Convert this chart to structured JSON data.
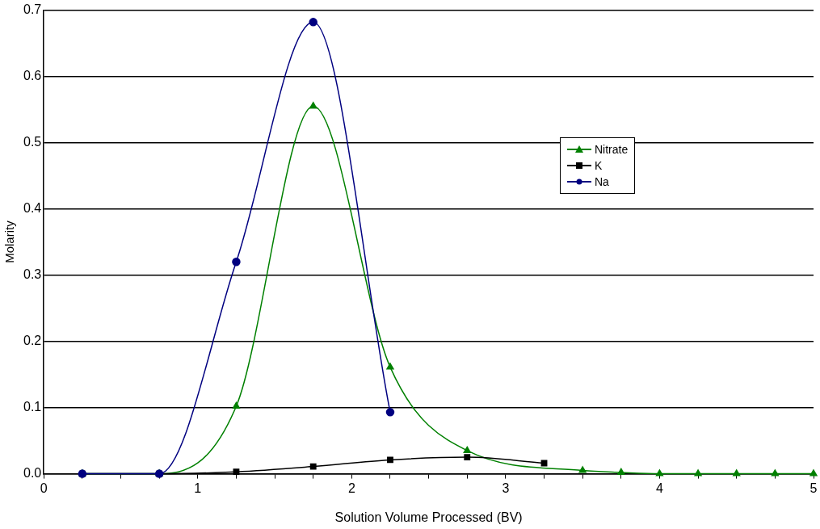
{
  "chart_data": {
    "type": "line",
    "xlabel": "Solution Volume Processed (BV)",
    "ylabel": "Molarity",
    "xlim": [
      0,
      5
    ],
    "xticks": [
      0,
      {
        "value": 0.25,
        "label": null
      },
      {
        "value": 0.5,
        "label": null
      },
      {
        "value": 0.75,
        "label": null
      },
      1,
      {
        "value": 1.25,
        "label": null
      },
      {
        "value": 1.5,
        "label": null
      },
      {
        "value": 1.75,
        "label": null
      },
      2,
      {
        "value": 2.25,
        "label": null
      },
      {
        "value": 2.5,
        "label": null
      },
      {
        "value": 2.75,
        "label": null
      },
      3,
      {
        "value": 3.25,
        "label": null
      },
      {
        "value": 3.5,
        "label": null
      },
      {
        "value": 3.75,
        "label": null
      },
      4,
      {
        "value": 4.25,
        "label": null
      },
      {
        "value": 4.5,
        "label": null
      },
      {
        "value": 4.75,
        "label": null
      },
      5
    ],
    "ylim": [
      0,
      0.7
    ],
    "yticks": [
      {
        "value": 0,
        "label": "0.0"
      },
      {
        "value": 0.1,
        "label": "0.1"
      },
      {
        "value": 0.2,
        "label": "0.2"
      },
      {
        "value": 0.3,
        "label": "0.3"
      },
      {
        "value": 0.4,
        "label": "0.4"
      },
      {
        "value": 0.5,
        "label": "0.5"
      },
      {
        "value": 0.6,
        "label": "0.6"
      },
      {
        "value": 0.7,
        "label": "0.7"
      }
    ],
    "grid": "y",
    "legend": "right",
    "series": [
      {
        "name": "Nitrate",
        "color": "#008000",
        "marker": "triangle",
        "x": [
          0.25,
          0.75,
          1.25,
          1.75,
          2.25,
          2.75,
          3.25,
          3.5,
          3.75,
          4,
          4.25,
          4.5,
          4.75,
          5
        ],
        "values": [
          0,
          0,
          0.102,
          0.555,
          0.161,
          0.035,
          null,
          0.005,
          0.002,
          0,
          0,
          0,
          0,
          0
        ]
      },
      {
        "name": "K",
        "color": "#000000",
        "marker": "square",
        "x": [
          0.25,
          0.75,
          1.25,
          1.75,
          2.25,
          2.75,
          3.25
        ],
        "values": [
          0,
          0,
          0.003,
          0.011,
          0.021,
          0.025,
          0.016
        ]
      },
      {
        "name": "Na",
        "color": "#000080",
        "marker": "circle",
        "x": [
          0.25,
          0.75,
          1.25,
          1.75,
          2.25
        ],
        "values": [
          0,
          0,
          0.32,
          0.682,
          0.093
        ]
      }
    ]
  }
}
